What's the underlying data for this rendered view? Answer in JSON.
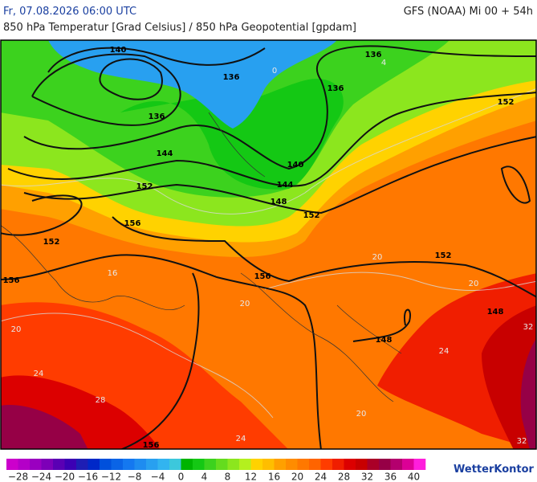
{
  "header": {
    "datetime": "Fr, 07.08.2026 06:00 UTC",
    "model": "GFS (NOAA) Mi 00 + 54h",
    "subtitle": "850 hPa Temperatur [Grad Celsius] / 850 hPa Geopotential [gpdam]"
  },
  "map": {
    "geopotential_labels": [
      140,
      136,
      136,
      136,
      136,
      144,
      140,
      144,
      148,
      152,
      152,
      152,
      156,
      152,
      156,
      156,
      152,
      148,
      148,
      156
    ],
    "temperature_labels": [
      20,
      24,
      28,
      24,
      20,
      20,
      20,
      20,
      24,
      32,
      32,
      16,
      0,
      4
    ]
  },
  "colorbar": {
    "lim": [
      -30,
      42
    ],
    "ticks": [
      {
        "value": -28,
        "label": "−28"
      },
      {
        "value": -24,
        "label": "−24"
      },
      {
        "value": -20,
        "label": "−20"
      },
      {
        "value": -16,
        "label": "−16"
      },
      {
        "value": -12,
        "label": "−12"
      },
      {
        "value": -8,
        "label": "−8"
      },
      {
        "value": -4,
        "label": "−4"
      },
      0,
      4,
      8,
      12,
      16,
      20,
      24,
      28,
      32,
      36,
      40
    ],
    "colors": [
      "#cc00cc",
      "#b400c8",
      "#9a00c0",
      "#7d00b8",
      "#5a00b4",
      "#3c00b4",
      "#1e1eb4",
      "#0028c8",
      "#0050dc",
      "#0a64e6",
      "#1478f0",
      "#1e8cf0",
      "#28a0f0",
      "#32b4f0",
      "#3cc8dc",
      "#00b400",
      "#14c814",
      "#3cd21e",
      "#64dc1e",
      "#8ce61e",
      "#b4f01e",
      "#ffd200",
      "#ffbe00",
      "#ffa000",
      "#ff8c00",
      "#ff7800",
      "#ff6400",
      "#ff3c00",
      "#f01e00",
      "#dc0000",
      "#c80000",
      "#aa0028",
      "#960046",
      "#b4006e",
      "#dc0096",
      "#ff1edc"
    ]
  },
  "logo": "WetterKontor"
}
